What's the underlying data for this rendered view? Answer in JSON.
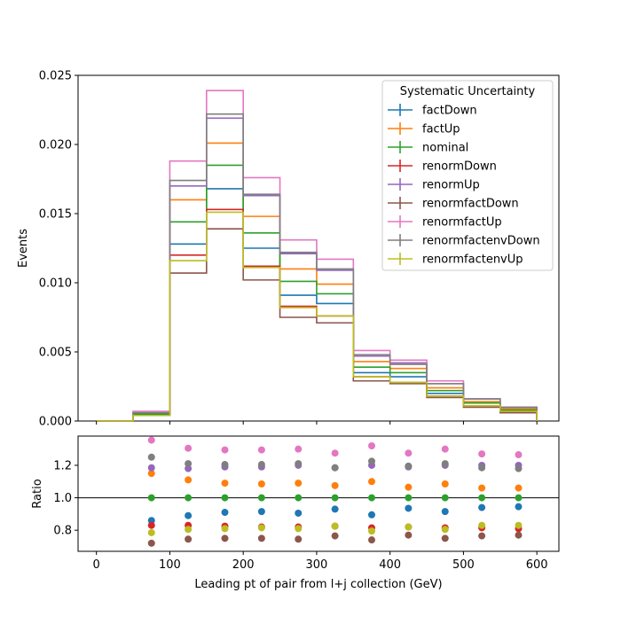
{
  "chart_data": {
    "type": "step-histogram-with-ratio",
    "upper": {
      "ylabel": "Events",
      "ylim": [
        0,
        0.025
      ],
      "yticks": [
        "0.000",
        "0.005",
        "0.010",
        "0.015",
        "0.020",
        "0.025"
      ],
      "xlim": [
        -25,
        630
      ],
      "bin_edges": [
        0,
        50,
        100,
        150,
        200,
        250,
        300,
        350,
        400,
        450,
        500,
        550,
        600
      ],
      "legend": {
        "title": "Systematic Uncertainty",
        "placement": "top-right"
      },
      "series": [
        {
          "name": "factDown",
          "color": "#1f77b4",
          "values": [
            0.0,
            0.0005,
            0.0128,
            0.0168,
            0.0125,
            0.0091,
            0.0085,
            0.0035,
            0.0032,
            0.002,
            0.0013,
            0.0008
          ]
        },
        {
          "name": "factUp",
          "color": "#ff7f0e",
          "values": [
            0.0,
            0.0006,
            0.016,
            0.0201,
            0.0148,
            0.011,
            0.0099,
            0.0043,
            0.0038,
            0.0024,
            0.0014,
            0.0009
          ]
        },
        {
          "name": "nominal",
          "color": "#2ca02c",
          "values": [
            0.0,
            0.0005,
            0.0144,
            0.0185,
            0.0136,
            0.0101,
            0.0092,
            0.0039,
            0.0035,
            0.0022,
            0.0013,
            0.0008
          ]
        },
        {
          "name": "renormDown",
          "color": "#d62728",
          "values": [
            0.0,
            0.0004,
            0.012,
            0.0153,
            0.0112,
            0.0083,
            0.0076,
            0.0032,
            0.0028,
            0.0018,
            0.0011,
            0.0007
          ]
        },
        {
          "name": "renormUp",
          "color": "#9467bd",
          "values": [
            0.0,
            0.0006,
            0.017,
            0.0219,
            0.0163,
            0.0121,
            0.0109,
            0.0047,
            0.0042,
            0.0027,
            0.0016,
            0.001
          ]
        },
        {
          "name": "renormfactDown",
          "color": "#8c564b",
          "values": [
            0.0,
            0.0004,
            0.0107,
            0.0139,
            0.0102,
            0.0075,
            0.0071,
            0.0029,
            0.0027,
            0.0017,
            0.001,
            0.0006
          ]
        },
        {
          "name": "renormfactUp",
          "color": "#e377c2",
          "values": [
            0.0,
            0.0007,
            0.0188,
            0.0239,
            0.0176,
            0.0131,
            0.0117,
            0.0051,
            0.0044,
            0.0029,
            0.0016,
            0.001
          ]
        },
        {
          "name": "renormfactenvDown",
          "color": "#7f7f7f",
          "values": [
            0.0,
            0.0006,
            0.0174,
            0.0222,
            0.0164,
            0.0122,
            0.011,
            0.0048,
            0.0041,
            0.0027,
            0.0016,
            0.001
          ]
        },
        {
          "name": "renormfactenvUp",
          "color": "#bcbd22",
          "values": [
            0.0,
            0.0004,
            0.0116,
            0.0151,
            0.0111,
            0.0082,
            0.0076,
            0.0032,
            0.0028,
            0.0018,
            0.0011,
            0.0007
          ]
        }
      ]
    },
    "lower": {
      "ylabel": "Ratio",
      "xlabel": "Leading pt of pair from l+j collection (GeV)",
      "ylim": [
        0.67,
        1.38
      ],
      "yticks": [
        "0.8",
        "1.0",
        "1.2"
      ],
      "xticks": [
        "0",
        "100",
        "200",
        "300",
        "400",
        "500",
        "600"
      ],
      "reference_line": 1.0,
      "x": [
        75,
        125,
        175,
        225,
        275,
        325,
        375,
        425,
        475,
        525,
        575
      ],
      "series": [
        {
          "name": "factDown",
          "color": "#1f77b4",
          "values": [
            0.86,
            0.89,
            0.91,
            0.915,
            0.905,
            0.93,
            0.895,
            0.935,
            0.915,
            0.94,
            0.945
          ]
        },
        {
          "name": "factUp",
          "color": "#ff7f0e",
          "values": [
            1.15,
            1.11,
            1.09,
            1.085,
            1.09,
            1.075,
            1.1,
            1.065,
            1.085,
            1.06,
            1.06
          ]
        },
        {
          "name": "nominal",
          "color": "#2ca02c",
          "values": [
            1.0,
            1.0,
            1.0,
            1.0,
            1.0,
            1.0,
            1.0,
            1.0,
            1.0,
            1.0,
            1.0
          ]
        },
        {
          "name": "renormDown",
          "color": "#d62728",
          "values": [
            0.83,
            0.83,
            0.825,
            0.82,
            0.82,
            0.825,
            0.815,
            0.82,
            0.815,
            0.815,
            0.81
          ]
        },
        {
          "name": "renormUp",
          "color": "#9467bd",
          "values": [
            1.185,
            1.18,
            1.19,
            1.19,
            1.2,
            1.185,
            1.2,
            1.19,
            1.2,
            1.2,
            1.2
          ]
        },
        {
          "name": "renormfactDown",
          "color": "#8c564b",
          "values": [
            0.72,
            0.745,
            0.75,
            0.75,
            0.745,
            0.765,
            0.74,
            0.77,
            0.75,
            0.765,
            0.77
          ]
        },
        {
          "name": "renormfactUp",
          "color": "#e377c2",
          "values": [
            1.355,
            1.305,
            1.295,
            1.295,
            1.3,
            1.275,
            1.32,
            1.275,
            1.3,
            1.27,
            1.265
          ]
        },
        {
          "name": "renormfactenvDown",
          "color": "#7f7f7f",
          "values": [
            1.25,
            1.21,
            1.205,
            1.205,
            1.21,
            1.185,
            1.225,
            1.195,
            1.21,
            1.185,
            1.18
          ]
        },
        {
          "name": "renormfactenvUp",
          "color": "#bcbd22",
          "values": [
            0.785,
            0.805,
            0.81,
            0.815,
            0.81,
            0.825,
            0.795,
            0.82,
            0.805,
            0.83,
            0.83
          ]
        }
      ]
    }
  }
}
